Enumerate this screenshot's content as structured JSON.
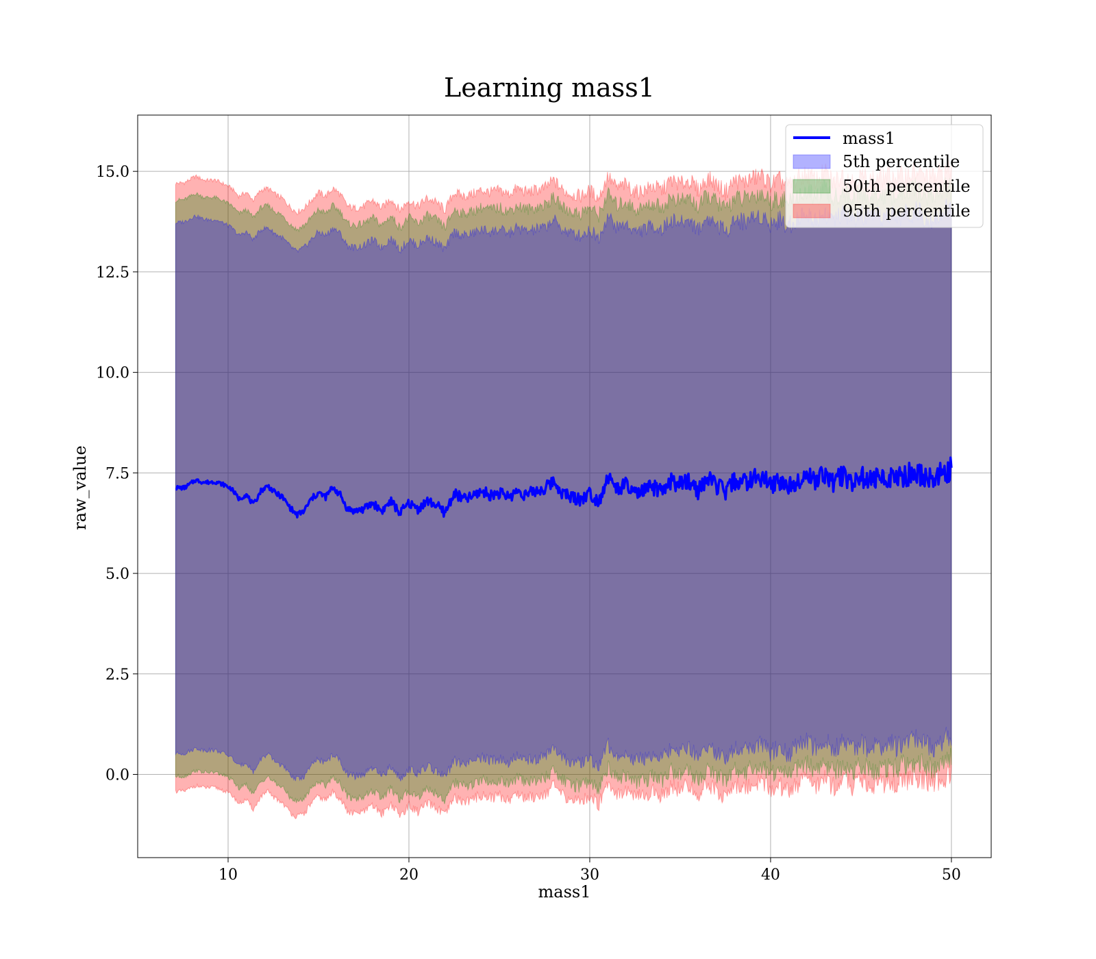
{
  "chart_data": {
    "type": "area",
    "title": "Learning mass1",
    "xlabel": "mass1",
    "ylabel": "raw_value",
    "xlim": [
      5,
      52.2
    ],
    "ylim": [
      -2.07,
      16.4
    ],
    "xticks": [
      10,
      20,
      30,
      40,
      50
    ],
    "yticks": [
      0.0,
      2.5,
      5.0,
      7.5,
      10.0,
      12.5,
      15.0
    ],
    "xtick_labels": [
      "10",
      "20",
      "30",
      "40",
      "50"
    ],
    "ytick_labels": [
      "0.0",
      "2.5",
      "5.0",
      "7.5",
      "10.0",
      "12.5",
      "15.0"
    ],
    "grid": true,
    "legend_position": "top-right",
    "x_range": [
      7.1,
      50.0
    ],
    "line": {
      "name": "mass1",
      "color": "#0000ff",
      "x": [
        7.1,
        7.6,
        8.2,
        8.7,
        9.3,
        9.8,
        10.2,
        10.6,
        11.0,
        11.4,
        11.8,
        12.2,
        12.6,
        13.0,
        13.4,
        13.8,
        14.2,
        14.6,
        15.0,
        15.4,
        15.8,
        16.2,
        16.6,
        17.0,
        17.5,
        18.0,
        18.5,
        19.0,
        19.5,
        20.0,
        20.5,
        21.0,
        21.5,
        22.0,
        22.5,
        23.0,
        23.5,
        24.0,
        24.5,
        25.0,
        25.5,
        26.0,
        26.5,
        27.0,
        27.5,
        28.0,
        28.5,
        29.0,
        29.5,
        30.0,
        30.5,
        31.0,
        31.5,
        32.0,
        32.5,
        33.0,
        33.5,
        34.0,
        34.5,
        35.0,
        35.5,
        36.0,
        36.5,
        37.0,
        37.5,
        38.0,
        38.5,
        39.0,
        39.5,
        40.0,
        40.5,
        41.0,
        41.5,
        42.0,
        42.5,
        43.0,
        43.5,
        44.0,
        44.5,
        45.0,
        45.5,
        46.0,
        46.5,
        47.0,
        47.5,
        48.0,
        48.5,
        49.0,
        49.5,
        50.0
      ],
      "y": [
        7.13,
        7.13,
        7.32,
        7.26,
        7.28,
        7.2,
        7.1,
        6.85,
        6.96,
        6.7,
        7.05,
        7.18,
        7.0,
        6.9,
        6.65,
        6.45,
        6.55,
        6.85,
        7.0,
        6.9,
        7.15,
        6.95,
        6.6,
        6.55,
        6.6,
        6.75,
        6.55,
        6.8,
        6.5,
        6.75,
        6.6,
        6.8,
        6.7,
        6.5,
        7.0,
        6.85,
        6.9,
        7.05,
        6.95,
        7.0,
        6.9,
        7.05,
        6.95,
        7.05,
        7.1,
        7.3,
        7.0,
        6.9,
        6.85,
        7.0,
        6.8,
        7.4,
        7.1,
        7.2,
        6.95,
        7.05,
        7.15,
        7.0,
        7.3,
        7.2,
        7.3,
        7.05,
        7.35,
        7.2,
        7.0,
        7.3,
        7.25,
        7.35,
        7.4,
        7.2,
        7.3,
        7.15,
        7.35,
        7.45,
        7.3,
        7.5,
        7.25,
        7.45,
        7.3,
        7.4,
        7.3,
        7.35,
        7.4,
        7.35,
        7.45,
        7.5,
        7.4,
        7.35,
        7.5,
        7.6
      ]
    },
    "series": [
      {
        "name": "5th percentile",
        "color": "#0000ff",
        "upper": [
          13.72,
          13.75,
          13.9,
          13.8,
          13.8,
          13.7,
          13.6,
          13.4,
          13.5,
          13.3,
          13.55,
          13.6,
          13.45,
          13.35,
          13.15,
          13.0,
          13.1,
          13.3,
          13.5,
          13.4,
          13.6,
          13.45,
          13.15,
          13.1,
          13.15,
          13.3,
          13.1,
          13.35,
          13.05,
          13.3,
          13.15,
          13.35,
          13.25,
          13.05,
          13.5,
          13.4,
          13.45,
          13.55,
          13.5,
          13.55,
          13.45,
          13.6,
          13.5,
          13.55,
          13.6,
          13.8,
          13.55,
          13.45,
          13.4,
          13.55,
          13.35,
          13.9,
          13.6,
          13.7,
          13.5,
          13.55,
          13.65,
          13.55,
          13.8,
          13.7,
          13.8,
          13.55,
          13.85,
          13.7,
          13.5,
          13.8,
          13.75,
          13.85,
          13.9,
          13.7,
          13.8,
          13.65,
          13.85,
          13.95,
          13.8,
          14.0,
          13.75,
          13.95,
          13.8,
          13.9,
          13.8,
          13.85,
          13.9,
          13.85,
          13.95,
          14.0,
          13.9,
          13.85,
          14.0,
          14.1
        ],
        "lower": [
          0.52,
          0.52,
          0.65,
          0.6,
          0.6,
          0.52,
          0.42,
          0.2,
          0.3,
          0.05,
          0.38,
          0.5,
          0.32,
          0.22,
          0.0,
          -0.12,
          -0.05,
          0.22,
          0.38,
          0.28,
          0.5,
          0.32,
          0.0,
          -0.05,
          0.0,
          0.15,
          -0.05,
          0.2,
          -0.1,
          0.15,
          0.0,
          0.2,
          0.1,
          -0.1,
          0.35,
          0.25,
          0.3,
          0.42,
          0.35,
          0.4,
          0.3,
          0.45,
          0.35,
          0.4,
          0.45,
          0.65,
          0.4,
          0.3,
          0.25,
          0.4,
          0.2,
          0.75,
          0.45,
          0.55,
          0.35,
          0.4,
          0.5,
          0.4,
          0.65,
          0.55,
          0.65,
          0.4,
          0.7,
          0.55,
          0.35,
          0.65,
          0.6,
          0.7,
          0.75,
          0.55,
          0.65,
          0.5,
          0.7,
          0.8,
          0.65,
          0.85,
          0.6,
          0.8,
          0.65,
          0.75,
          0.65,
          0.7,
          0.75,
          0.7,
          0.8,
          0.85,
          0.75,
          0.7,
          0.85,
          0.95
        ]
      },
      {
        "name": "50th percentile",
        "color": "#008000",
        "upper": [
          14.28,
          14.3,
          14.45,
          14.35,
          14.35,
          14.25,
          14.15,
          13.95,
          14.05,
          13.85,
          14.1,
          14.15,
          14.0,
          13.9,
          13.7,
          13.55,
          13.65,
          13.85,
          14.05,
          13.95,
          14.15,
          14.0,
          13.7,
          13.65,
          13.7,
          13.85,
          13.65,
          13.9,
          13.6,
          13.85,
          13.7,
          13.9,
          13.8,
          13.6,
          14.05,
          13.95,
          14.0,
          14.1,
          14.05,
          14.1,
          14.0,
          14.15,
          14.05,
          14.1,
          14.15,
          14.35,
          14.1,
          14.0,
          13.95,
          14.1,
          13.9,
          14.45,
          14.15,
          14.25,
          14.05,
          14.1,
          14.2,
          14.1,
          14.35,
          14.25,
          14.35,
          14.1,
          14.4,
          14.25,
          14.05,
          14.35,
          14.3,
          14.4,
          14.45,
          14.25,
          14.35,
          14.2,
          14.4,
          14.5,
          14.35,
          14.55,
          14.3,
          14.5,
          14.35,
          14.45,
          14.35,
          14.4,
          14.45,
          14.4,
          14.5,
          14.55,
          14.45,
          14.4,
          14.55,
          14.6
        ],
        "lower": [
          -0.05,
          -0.05,
          0.1,
          0.05,
          0.05,
          -0.03,
          -0.13,
          -0.35,
          -0.25,
          -0.5,
          -0.18,
          -0.05,
          -0.22,
          -0.32,
          -0.55,
          -0.68,
          -0.6,
          -0.33,
          -0.17,
          -0.27,
          -0.05,
          -0.22,
          -0.55,
          -0.6,
          -0.55,
          -0.4,
          -0.6,
          -0.35,
          -0.65,
          -0.4,
          -0.55,
          -0.35,
          -0.45,
          -0.65,
          -0.2,
          -0.3,
          -0.25,
          -0.13,
          -0.2,
          -0.15,
          -0.25,
          -0.1,
          -0.2,
          -0.15,
          -0.1,
          0.1,
          -0.15,
          -0.25,
          -0.3,
          -0.15,
          -0.35,
          0.2,
          -0.1,
          0.0,
          -0.2,
          -0.15,
          -0.05,
          -0.15,
          0.1,
          0.0,
          0.1,
          -0.15,
          0.15,
          0.0,
          -0.2,
          0.1,
          0.05,
          0.15,
          0.2,
          0.0,
          0.1,
          -0.05,
          0.15,
          0.25,
          0.1,
          0.3,
          0.05,
          0.25,
          0.1,
          0.2,
          0.1,
          0.15,
          0.2,
          0.15,
          0.25,
          0.3,
          0.2,
          0.15,
          0.3,
          0.4
        ]
      },
      {
        "name": "95th percentile",
        "color": "#ff0000",
        "upper": [
          14.7,
          14.72,
          14.88,
          14.78,
          14.78,
          14.68,
          14.58,
          14.38,
          14.48,
          14.28,
          14.53,
          14.58,
          14.43,
          14.33,
          14.13,
          13.98,
          14.08,
          14.28,
          14.48,
          14.38,
          14.58,
          14.43,
          14.13,
          14.08,
          14.13,
          14.28,
          14.08,
          14.33,
          14.03,
          14.28,
          14.13,
          14.33,
          14.23,
          14.03,
          14.48,
          14.38,
          14.43,
          14.53,
          14.48,
          14.53,
          14.43,
          14.58,
          14.48,
          14.53,
          14.58,
          14.78,
          14.53,
          14.43,
          14.38,
          14.53,
          14.33,
          14.88,
          14.58,
          14.68,
          14.48,
          14.53,
          14.63,
          14.53,
          14.78,
          14.68,
          14.78,
          14.53,
          14.83,
          14.68,
          14.48,
          14.78,
          14.73,
          14.83,
          14.88,
          14.68,
          14.78,
          14.63,
          14.83,
          14.93,
          14.78,
          14.98,
          14.73,
          14.93,
          14.78,
          14.88,
          14.78,
          14.83,
          14.88,
          14.83,
          14.93,
          14.98,
          14.88,
          14.83,
          14.98,
          15.05
        ],
        "lower": [
          -0.42,
          -0.42,
          -0.28,
          -0.33,
          -0.33,
          -0.41,
          -0.51,
          -0.73,
          -0.63,
          -0.88,
          -0.56,
          -0.43,
          -0.6,
          -0.7,
          -0.93,
          -1.06,
          -0.98,
          -0.71,
          -0.55,
          -0.65,
          -0.43,
          -0.6,
          -0.93,
          -0.98,
          -0.93,
          -0.78,
          -0.98,
          -0.73,
          -1.03,
          -0.78,
          -0.93,
          -0.73,
          -0.83,
          -1.03,
          -0.58,
          -0.68,
          -0.63,
          -0.51,
          -0.58,
          -0.53,
          -0.63,
          -0.48,
          -0.58,
          -0.53,
          -0.48,
          -0.28,
          -0.53,
          -0.63,
          -0.68,
          -0.53,
          -0.73,
          -0.18,
          -0.48,
          -0.38,
          -0.58,
          -0.53,
          -0.43,
          -0.53,
          -0.28,
          -0.38,
          -0.28,
          -0.53,
          -0.23,
          -0.38,
          -0.58,
          -0.28,
          -0.33,
          -0.23,
          -0.18,
          -0.38,
          -0.28,
          -0.43,
          -0.23,
          -0.13,
          -0.28,
          -0.08,
          -0.33,
          -0.13,
          -0.28,
          -0.18,
          -0.28,
          -0.23,
          -0.18,
          -0.23,
          -0.13,
          -0.08,
          -0.18,
          -0.23,
          -0.08,
          0.0
        ]
      }
    ],
    "band_fill_opacity": 0.3,
    "band_draw_order": [
      "95th percentile",
      "50th percentile",
      "5th percentile"
    ]
  }
}
